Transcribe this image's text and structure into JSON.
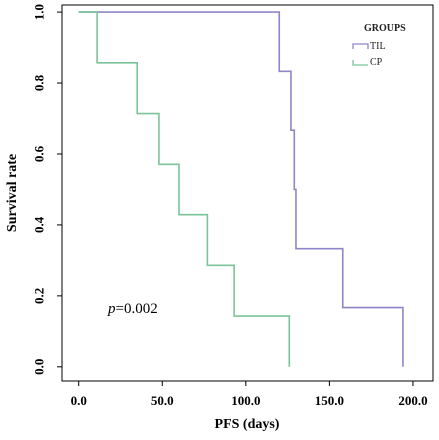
{
  "chart_data": {
    "type": "line",
    "subtype": "kaplan-meier step",
    "xlabel": "PFS (days)",
    "ylabel": "Survival rate",
    "xlim": [
      -10,
      212
    ],
    "ylim": [
      -0.04,
      1.02
    ],
    "xticks": [
      0,
      50,
      100,
      150,
      200
    ],
    "xtick_labels": [
      "0.0",
      "50.0",
      "100.0",
      "150.0",
      "200.0"
    ],
    "yticks": [
      0,
      0.2,
      0.4,
      0.6,
      0.8,
      1.0
    ],
    "ytick_labels": [
      "0.0",
      "0.2",
      "0.4",
      "0.6",
      "0.8",
      "1.0"
    ],
    "grid": false,
    "legend": {
      "title": "GROUPS",
      "placement": "top-right"
    },
    "annotation": {
      "prefix": "p",
      "value": "=0.002"
    },
    "series": [
      {
        "name": "TIL",
        "color": "#8d86c9",
        "points": [
          {
            "x": 0,
            "y": 1.0
          },
          {
            "x": 120,
            "y": 0.833
          },
          {
            "x": 127,
            "y": 0.667
          },
          {
            "x": 129,
            "y": 0.5
          },
          {
            "x": 130,
            "y": 0.333
          },
          {
            "x": 158,
            "y": 0.167
          },
          {
            "x": 194,
            "y": 0.0
          }
        ]
      },
      {
        "name": "CP",
        "color": "#7bc49a",
        "points": [
          {
            "x": 0,
            "y": 1.0
          },
          {
            "x": 11,
            "y": 0.857
          },
          {
            "x": 35,
            "y": 0.714
          },
          {
            "x": 48,
            "y": 0.571
          },
          {
            "x": 60,
            "y": 0.429
          },
          {
            "x": 77,
            "y": 0.286
          },
          {
            "x": 93,
            "y": 0.143
          },
          {
            "x": 126,
            "y": 0.0
          }
        ]
      }
    ]
  }
}
